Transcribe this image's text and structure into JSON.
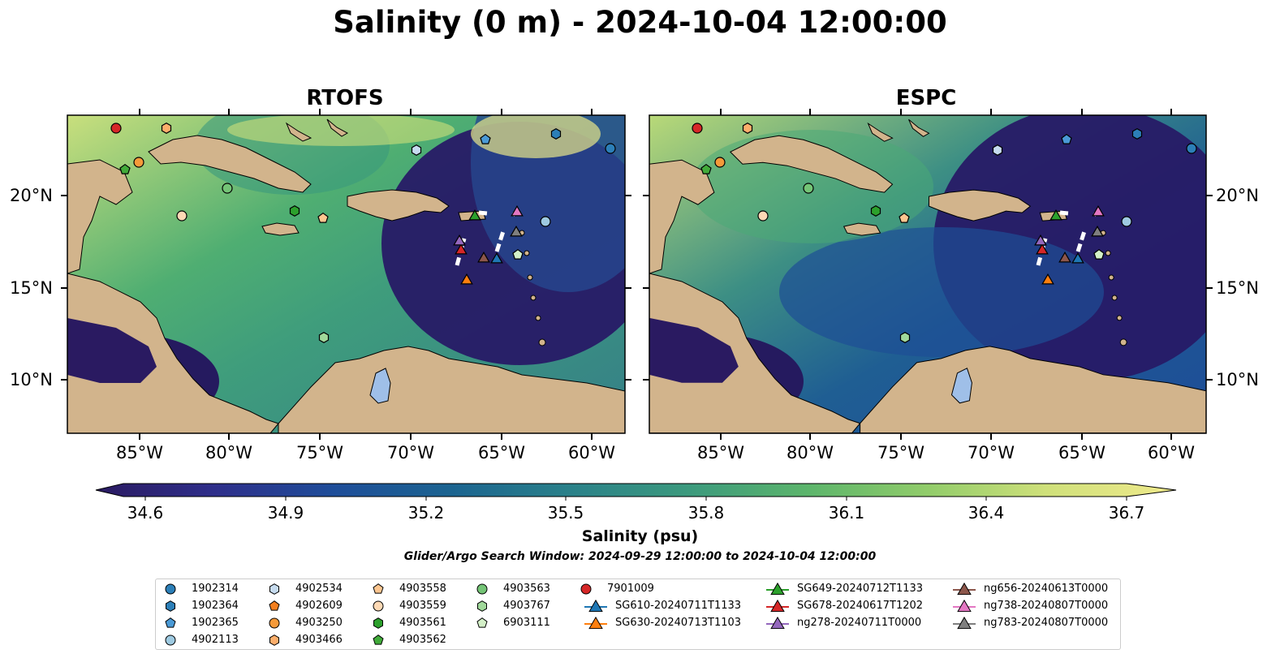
{
  "title": "Salinity (0 m) - 2024-10-04 12:00:00",
  "panels": [
    {
      "title": "RTOFS",
      "model": "rtofs"
    },
    {
      "title": "ESPC",
      "model": "espc"
    }
  ],
  "lat_ticks": [
    "20°N",
    "15°N",
    "10°N"
  ],
  "lon_ticks": [
    "85°W",
    "80°W",
    "75°W",
    "70°W",
    "65°W",
    "60°W"
  ],
  "colorbar": {
    "label": "Salinity (psu)",
    "ticks": [
      "34.6",
      "34.9",
      "35.2",
      "35.5",
      "35.8",
      "36.1",
      "36.4",
      "36.7"
    ],
    "min": 34.6,
    "max": 36.7,
    "colormap": [
      "#2a1a61",
      "#2e2e8a",
      "#1e4d99",
      "#1b6490",
      "#2a8189",
      "#3c9a7d",
      "#5cb56b",
      "#91cc6a",
      "#cfe07a",
      "#f0ea8c"
    ]
  },
  "search_window": "Glider/Argo Search Window: 2024-09-29 12:00:00 to 2024-10-04 12:00:00",
  "colors": {
    "land": "#d2b48c",
    "lake": "#9fbfe8",
    "text": "#000000"
  },
  "legend": [
    {
      "label": "1902314",
      "marker": "circle",
      "color": "#2c7fb8"
    },
    {
      "label": "1902364",
      "marker": "hexagon",
      "color": "#2c7fb8"
    },
    {
      "label": "1902365",
      "marker": "pentagon",
      "color": "#4a9ad6"
    },
    {
      "label": "4902113",
      "marker": "circle",
      "color": "#9ecae1"
    },
    {
      "label": "4902534",
      "marker": "hexagon",
      "color": "#c6dbef"
    },
    {
      "label": "4902609",
      "marker": "pentagon",
      "color": "#f37f1e"
    },
    {
      "label": "4903250",
      "marker": "circle",
      "color": "#f59a3a"
    },
    {
      "label": "4903466",
      "marker": "hexagon",
      "color": "#fdae6b"
    },
    {
      "label": "4903558",
      "marker": "pentagon",
      "color": "#fdc690"
    },
    {
      "label": "4903559",
      "marker": "circle",
      "color": "#fdd9b5"
    },
    {
      "label": "4903561",
      "marker": "hexagon",
      "color": "#2ca02c"
    },
    {
      "label": "4903562",
      "marker": "pentagon",
      "color": "#41ab3a"
    },
    {
      "label": "4903563",
      "marker": "circle",
      "color": "#74c476"
    },
    {
      "label": "4903767",
      "marker": "hexagon",
      "color": "#a1d99b"
    },
    {
      "label": "6903111",
      "marker": "pentagon",
      "color": "#d4f0c8"
    },
    {
      "label": "7901009",
      "marker": "circle",
      "color": "#d62728"
    },
    {
      "label": "SG610-20240711T1133",
      "marker": "triangle",
      "color": "#1f77b4"
    },
    {
      "label": "SG630-20240713T1103",
      "marker": "triangle",
      "color": "#ff7f0e"
    },
    {
      "label": "SG649-20240712T1133",
      "marker": "triangle",
      "color": "#2ca02c"
    },
    {
      "label": "SG678-20240617T1202",
      "marker": "triangle",
      "color": "#d62728"
    },
    {
      "label": "ng278-20240711T0000",
      "marker": "triangle",
      "color": "#9467bd"
    },
    {
      "label": "ng656-20240613T0000",
      "marker": "triangle",
      "color": "#8c564b"
    },
    {
      "label": "ng738-20240807T0000",
      "marker": "triangle",
      "color": "#e377c2"
    },
    {
      "label": "ng783-20240807T0000",
      "marker": "triangle",
      "color": "#7f7f7f"
    }
  ]
}
